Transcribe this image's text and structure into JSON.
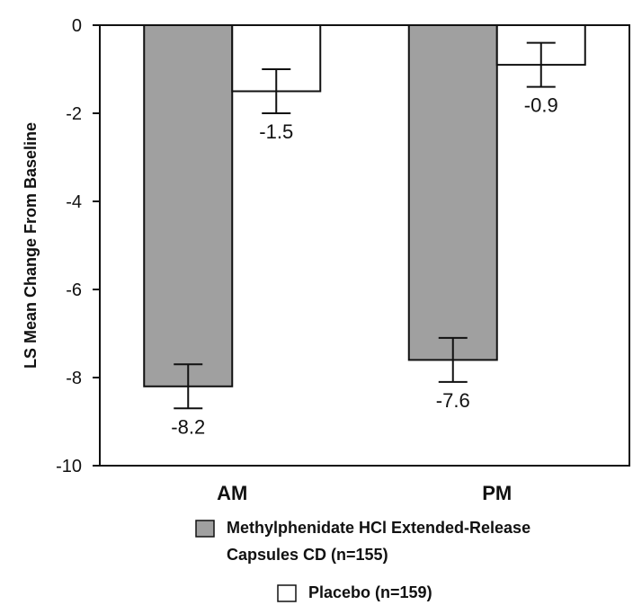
{
  "chart_data": {
    "type": "bar",
    "categories": [
      "AM",
      "PM"
    ],
    "series": [
      {
        "name_lines": [
          "Methylphenidate HCl Extended-Release",
          "Capsules CD  (n=155)"
        ],
        "values": [
          -8.2,
          -7.6
        ],
        "error": [
          0.5,
          0.5
        ],
        "value_labels": [
          "-8.2",
          "-7.6"
        ],
        "color": "#a0a0a0"
      },
      {
        "name_lines": [
          "Placebo (n=159)"
        ],
        "values": [
          -1.5,
          -0.9
        ],
        "error": [
          0.5,
          0.5
        ],
        "value_labels": [
          "-1.5",
          "-0.9"
        ],
        "color": "#ffffff"
      }
    ],
    "ylabel": "LS Mean Change From Baseline",
    "ylim": [
      -10,
      0
    ],
    "yticks": [
      0,
      -2,
      -4,
      -6,
      -8,
      -10
    ],
    "ytick_labels": [
      "0",
      "-2",
      "-4",
      "-6",
      "-8",
      "-10"
    ],
    "grid": false,
    "legend_position": "bottom"
  }
}
